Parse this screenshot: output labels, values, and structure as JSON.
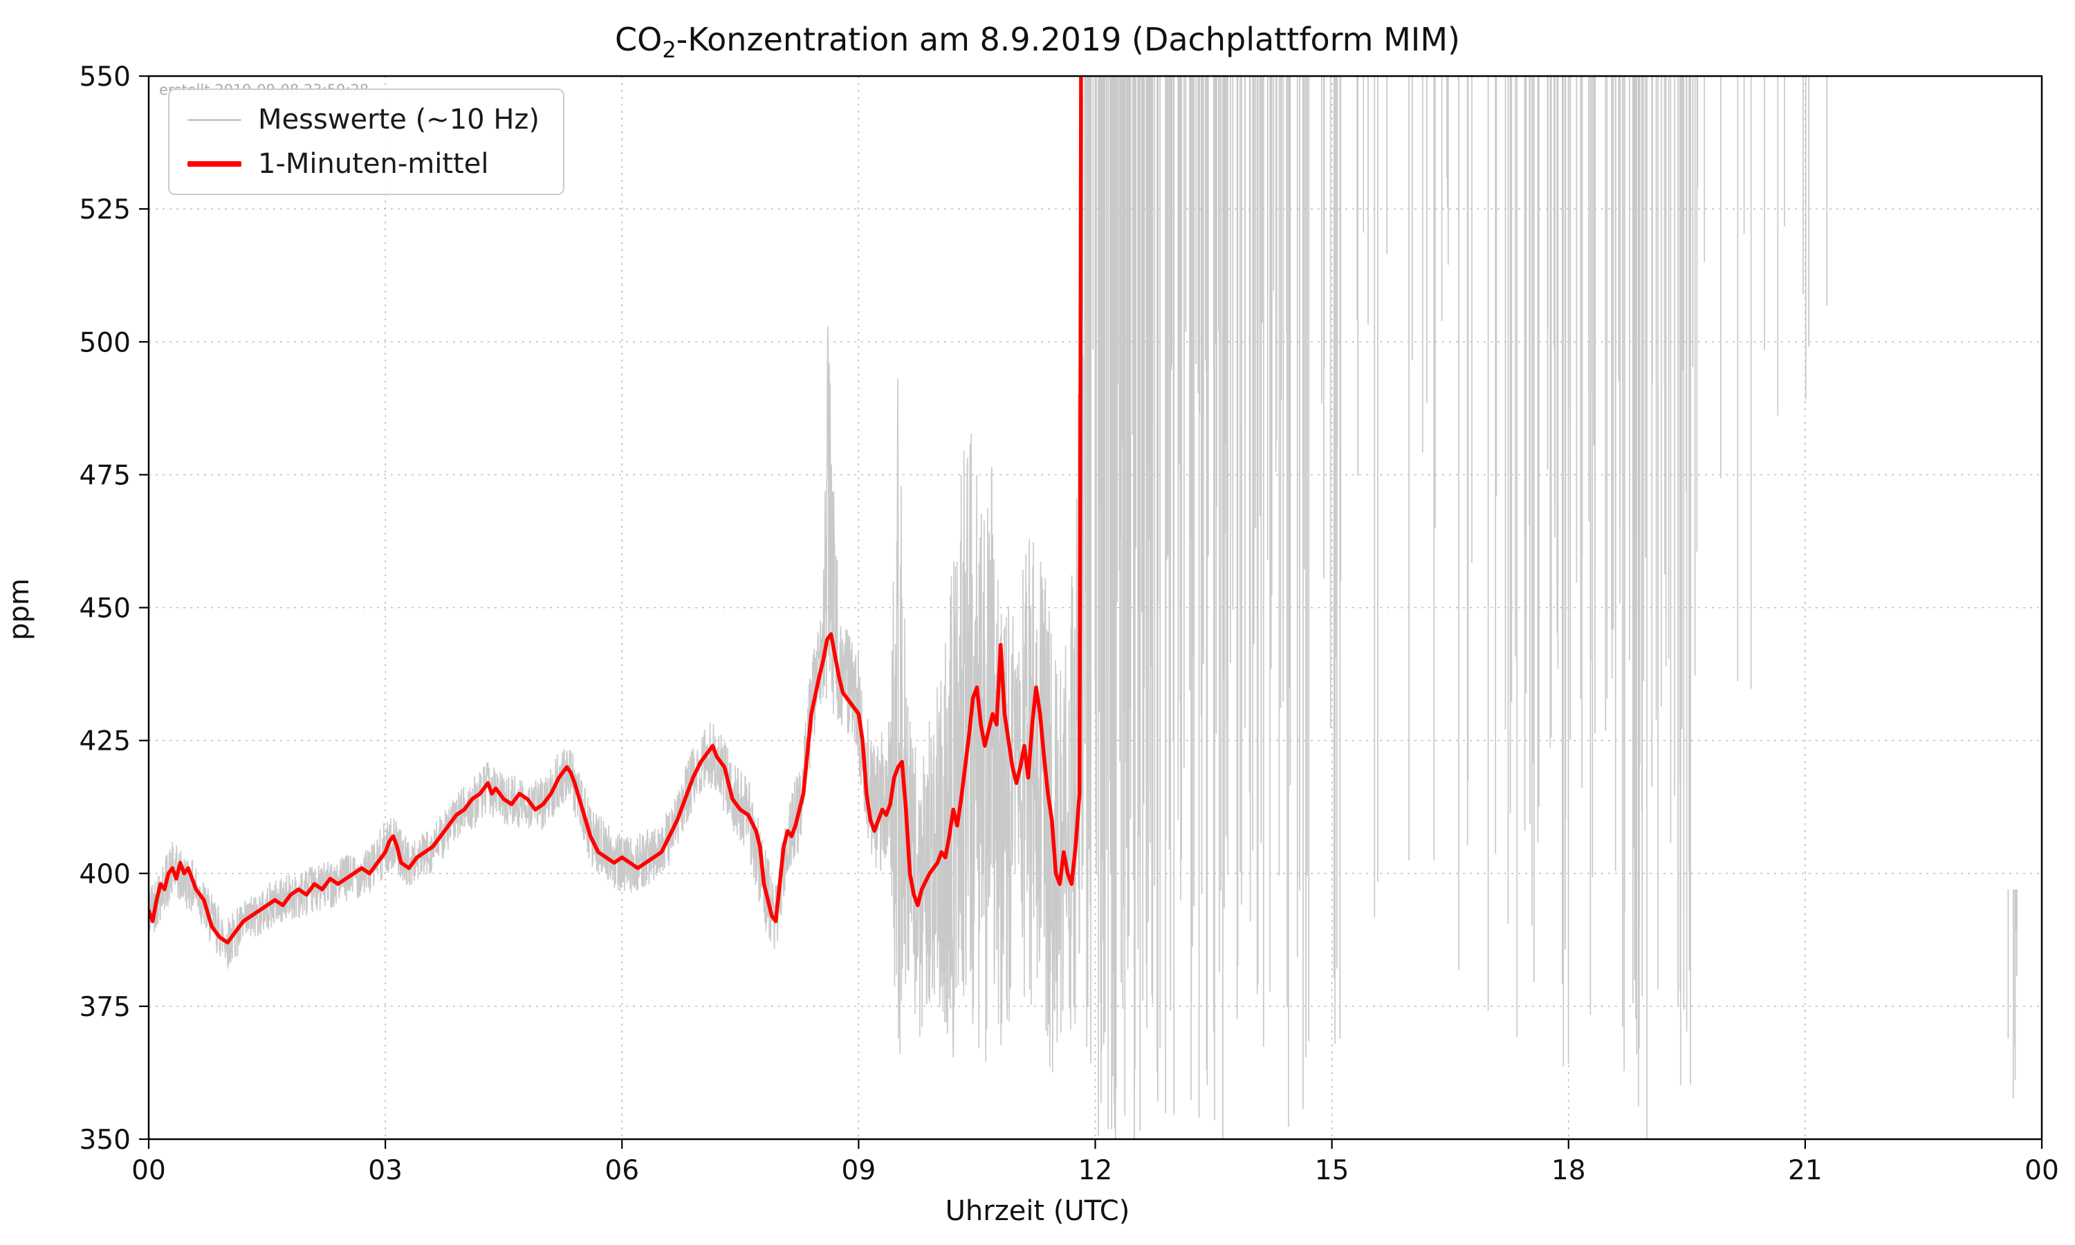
{
  "figure": {
    "title_co": "CO",
    "title_sub": "2",
    "title_rest": "-Konzentration am 8.9.2019 (Dachplattform MIM)",
    "watermark": "erstellt 2019-09-08 23:59:28"
  },
  "chart_data": {
    "type": "line",
    "title": "CO2-Konzentration am 8.9.2019 (Dachplattform MIM)",
    "xlabel": "Uhrzeit (UTC)",
    "ylabel": "ppm",
    "xlim": [
      0,
      24
    ],
    "ylim": [
      350,
      550
    ],
    "x_ticks": [
      0,
      3,
      6,
      9,
      12,
      15,
      18,
      21,
      24
    ],
    "x_tick_labels": [
      "00",
      "03",
      "06",
      "09",
      "12",
      "15",
      "18",
      "21",
      "00"
    ],
    "y_ticks": [
      350,
      375,
      400,
      425,
      450,
      475,
      500,
      525,
      550
    ],
    "y_tick_labels": [
      "350",
      "375",
      "400",
      "425",
      "450",
      "475",
      "500",
      "525",
      "550"
    ],
    "grid": true,
    "legend_position": "upper-left",
    "legend": [
      {
        "label": "Messwerte (~10 Hz)",
        "color": "#c9c9c9",
        "thickness": "thin"
      },
      {
        "label": "1-Minuten-mittel",
        "color": "#ff0000",
        "thickness": "thick"
      }
    ],
    "series": [
      {
        "name": "1-Minuten-mittel",
        "color": "#ff0000",
        "points": [
          [
            0.0,
            393
          ],
          [
            0.05,
            391
          ],
          [
            0.1,
            395
          ],
          [
            0.15,
            398
          ],
          [
            0.2,
            397
          ],
          [
            0.25,
            400
          ],
          [
            0.3,
            401
          ],
          [
            0.35,
            399
          ],
          [
            0.4,
            402
          ],
          [
            0.45,
            400
          ],
          [
            0.5,
            401
          ],
          [
            0.55,
            399
          ],
          [
            0.6,
            397
          ],
          [
            0.7,
            395
          ],
          [
            0.8,
            390
          ],
          [
            0.9,
            388
          ],
          [
            1.0,
            387
          ],
          [
            1.1,
            389
          ],
          [
            1.2,
            391
          ],
          [
            1.3,
            392
          ],
          [
            1.4,
            393
          ],
          [
            1.5,
            394
          ],
          [
            1.6,
            395
          ],
          [
            1.7,
            394
          ],
          [
            1.8,
            396
          ],
          [
            1.9,
            397
          ],
          [
            2.0,
            396
          ],
          [
            2.1,
            398
          ],
          [
            2.2,
            397
          ],
          [
            2.3,
            399
          ],
          [
            2.4,
            398
          ],
          [
            2.5,
            399
          ],
          [
            2.6,
            400
          ],
          [
            2.7,
            401
          ],
          [
            2.8,
            400
          ],
          [
            2.9,
            402
          ],
          [
            3.0,
            404
          ],
          [
            3.05,
            406
          ],
          [
            3.1,
            407
          ],
          [
            3.15,
            405
          ],
          [
            3.2,
            402
          ],
          [
            3.3,
            401
          ],
          [
            3.4,
            403
          ],
          [
            3.5,
            404
          ],
          [
            3.6,
            405
          ],
          [
            3.7,
            407
          ],
          [
            3.8,
            409
          ],
          [
            3.9,
            411
          ],
          [
            4.0,
            412
          ],
          [
            4.1,
            414
          ],
          [
            4.2,
            415
          ],
          [
            4.3,
            417
          ],
          [
            4.35,
            415
          ],
          [
            4.4,
            416
          ],
          [
            4.5,
            414
          ],
          [
            4.6,
            413
          ],
          [
            4.7,
            415
          ],
          [
            4.8,
            414
          ],
          [
            4.9,
            412
          ],
          [
            5.0,
            413
          ],
          [
            5.1,
            415
          ],
          [
            5.2,
            418
          ],
          [
            5.3,
            420
          ],
          [
            5.35,
            419
          ],
          [
            5.4,
            417
          ],
          [
            5.5,
            412
          ],
          [
            5.6,
            407
          ],
          [
            5.7,
            404
          ],
          [
            5.8,
            403
          ],
          [
            5.9,
            402
          ],
          [
            6.0,
            403
          ],
          [
            6.1,
            402
          ],
          [
            6.2,
            401
          ],
          [
            6.3,
            402
          ],
          [
            6.4,
            403
          ],
          [
            6.5,
            404
          ],
          [
            6.6,
            407
          ],
          [
            6.7,
            410
          ],
          [
            6.8,
            414
          ],
          [
            6.9,
            418
          ],
          [
            7.0,
            421
          ],
          [
            7.1,
            423
          ],
          [
            7.15,
            424
          ],
          [
            7.2,
            422
          ],
          [
            7.3,
            420
          ],
          [
            7.4,
            414
          ],
          [
            7.5,
            412
          ],
          [
            7.6,
            411
          ],
          [
            7.7,
            408
          ],
          [
            7.75,
            405
          ],
          [
            7.8,
            398
          ],
          [
            7.9,
            392
          ],
          [
            7.95,
            391
          ],
          [
            8.0,
            398
          ],
          [
            8.05,
            405
          ],
          [
            8.1,
            408
          ],
          [
            8.15,
            407
          ],
          [
            8.2,
            409
          ],
          [
            8.3,
            415
          ],
          [
            8.4,
            430
          ],
          [
            8.5,
            437
          ],
          [
            8.55,
            440
          ],
          [
            8.6,
            444
          ],
          [
            8.65,
            445
          ],
          [
            8.7,
            441
          ],
          [
            8.75,
            437
          ],
          [
            8.8,
            434
          ],
          [
            8.9,
            432
          ],
          [
            9.0,
            430
          ],
          [
            9.05,
            425
          ],
          [
            9.1,
            415
          ],
          [
            9.15,
            410
          ],
          [
            9.2,
            408
          ],
          [
            9.3,
            412
          ],
          [
            9.35,
            411
          ],
          [
            9.4,
            413
          ],
          [
            9.45,
            418
          ],
          [
            9.5,
            420
          ],
          [
            9.55,
            421
          ],
          [
            9.6,
            412
          ],
          [
            9.65,
            400
          ],
          [
            9.7,
            396
          ],
          [
            9.75,
            394
          ],
          [
            9.8,
            397
          ],
          [
            9.9,
            400
          ],
          [
            10.0,
            402
          ],
          [
            10.05,
            404
          ],
          [
            10.1,
            403
          ],
          [
            10.15,
            407
          ],
          [
            10.2,
            412
          ],
          [
            10.25,
            409
          ],
          [
            10.3,
            414
          ],
          [
            10.35,
            420
          ],
          [
            10.4,
            426
          ],
          [
            10.45,
            433
          ],
          [
            10.5,
            435
          ],
          [
            10.55,
            428
          ],
          [
            10.6,
            424
          ],
          [
            10.65,
            427
          ],
          [
            10.7,
            430
          ],
          [
            10.75,
            428
          ],
          [
            10.8,
            443
          ],
          [
            10.85,
            430
          ],
          [
            10.9,
            425
          ],
          [
            10.95,
            420
          ],
          [
            11.0,
            417
          ],
          [
            11.05,
            420
          ],
          [
            11.1,
            424
          ],
          [
            11.15,
            418
          ],
          [
            11.2,
            428
          ],
          [
            11.25,
            435
          ],
          [
            11.3,
            430
          ],
          [
            11.35,
            422
          ],
          [
            11.4,
            415
          ],
          [
            11.45,
            410
          ],
          [
            11.5,
            400
          ],
          [
            11.55,
            398
          ],
          [
            11.6,
            404
          ],
          [
            11.65,
            400
          ],
          [
            11.7,
            398
          ],
          [
            11.75,
            405
          ],
          [
            11.8,
            415
          ],
          [
            11.81,
            470
          ],
          [
            11.82,
            556
          ]
        ]
      }
    ],
    "gray": {
      "name": "Messwerte (~10 Hz)",
      "color": "#c9c9c9",
      "envelope": [
        [
          0.0,
          387,
          398
        ],
        [
          0.3,
          395,
          406
        ],
        [
          0.6,
          392,
          402
        ],
        [
          0.8,
          386,
          396
        ],
        [
          1.0,
          382,
          392
        ],
        [
          1.3,
          387,
          396
        ],
        [
          1.6,
          390,
          399
        ],
        [
          2.0,
          392,
          401
        ],
        [
          2.4,
          394,
          403
        ],
        [
          2.8,
          396,
          405
        ],
        [
          3.0,
          399,
          410
        ],
        [
          3.1,
          401,
          411
        ],
        [
          3.3,
          397,
          406
        ],
        [
          3.6,
          400,
          409
        ],
        [
          3.9,
          406,
          415
        ],
        [
          4.1,
          408,
          418
        ],
        [
          4.3,
          411,
          421
        ],
        [
          4.5,
          409,
          419
        ],
        [
          4.8,
          408,
          418
        ],
        [
          5.0,
          408,
          418
        ],
        [
          5.2,
          412,
          423
        ],
        [
          5.35,
          413,
          424
        ],
        [
          5.6,
          401,
          413
        ],
        [
          5.9,
          397,
          408
        ],
        [
          6.1,
          396,
          407
        ],
        [
          6.3,
          397,
          408
        ],
        [
          6.6,
          401,
          412
        ],
        [
          6.9,
          412,
          424
        ],
        [
          7.1,
          416,
          429
        ],
        [
          7.2,
          414,
          428
        ],
        [
          7.4,
          408,
          422
        ],
        [
          7.6,
          404,
          418
        ],
        [
          7.8,
          390,
          406
        ],
        [
          7.95,
          384,
          398
        ],
        [
          8.1,
          400,
          414
        ],
        [
          8.25,
          404,
          420
        ],
        [
          8.4,
          422,
          440
        ],
        [
          8.55,
          432,
          452
        ],
        [
          8.62,
          430,
          516
        ],
        [
          8.75,
          428,
          448
        ],
        [
          8.9,
          425,
          445
        ],
        [
          9.0,
          420,
          442
        ],
        [
          9.1,
          405,
          430
        ],
        [
          9.25,
          398,
          425
        ],
        [
          9.4,
          404,
          432
        ],
        [
          9.5,
          348,
          496
        ],
        [
          9.6,
          380,
          440
        ],
        [
          9.75,
          368,
          420
        ],
        [
          9.9,
          372,
          430
        ],
        [
          10.0,
          380,
          436
        ],
        [
          10.15,
          352,
          452
        ],
        [
          10.3,
          378,
          478
        ],
        [
          10.45,
          368,
          484
        ],
        [
          10.55,
          350,
          470
        ],
        [
          10.7,
          382,
          478
        ],
        [
          10.85,
          360,
          455
        ],
        [
          11.0,
          385,
          452
        ],
        [
          11.15,
          372,
          468
        ],
        [
          11.3,
          380,
          462
        ],
        [
          11.45,
          352,
          448
        ],
        [
          11.6,
          362,
          440
        ],
        [
          11.75,
          368,
          465
        ],
        [
          11.85,
          390,
          556
        ]
      ],
      "spike_regions": [
        {
          "t0": 11.85,
          "t1": 12.75,
          "count": 130,
          "top": 556,
          "depth_min": 348,
          "depth_max": 500
        },
        {
          "t0": 12.75,
          "t1": 13.75,
          "count": 75,
          "top": 556,
          "depth_min": 348,
          "depth_max": 510
        },
        {
          "t0": 13.75,
          "t1": 14.75,
          "count": 45,
          "top": 556,
          "depth_min": 350,
          "depth_max": 520
        },
        {
          "t0": 14.75,
          "t1": 15.75,
          "count": 18,
          "top": 556,
          "depth_min": 365,
          "depth_max": 525
        },
        {
          "t0": 15.75,
          "t1": 16.55,
          "count": 10,
          "top": 556,
          "depth_min": 380,
          "depth_max": 535
        },
        {
          "t0": 16.55,
          "t1": 17.35,
          "count": 14,
          "top": 556,
          "depth_min": 360,
          "depth_max": 520
        },
        {
          "t0": 17.35,
          "t1": 18.35,
          "count": 42,
          "top": 556,
          "depth_min": 350,
          "depth_max": 505
        },
        {
          "t0": 18.35,
          "t1": 19.55,
          "count": 55,
          "top": 556,
          "depth_min": 348,
          "depth_max": 495
        },
        {
          "t0": 19.55,
          "t1": 20.75,
          "count": 12,
          "top": 556,
          "depth_min": 425,
          "depth_max": 540
        },
        {
          "t0": 20.75,
          "t1": 21.35,
          "count": 4,
          "top": 556,
          "depth_min": 470,
          "depth_max": 548
        },
        {
          "t0": 23.55,
          "t1": 23.78,
          "count": 6,
          "top": 397,
          "depth_min": 356,
          "depth_max": 390
        }
      ]
    }
  }
}
